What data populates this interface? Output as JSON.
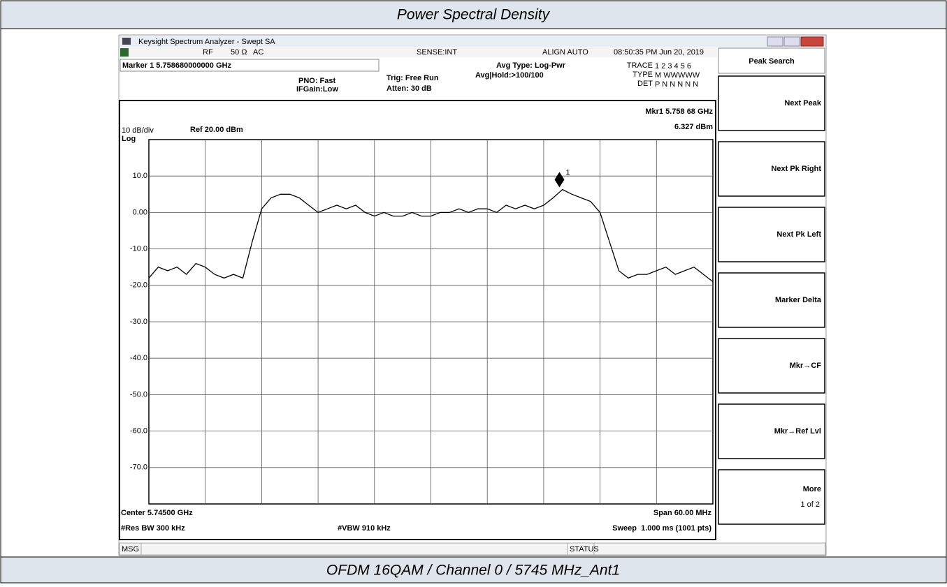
{
  "header": {
    "title": "Power Spectral Density"
  },
  "footer": {
    "caption": "OFDM 16QAM / Channel 0 / 5745 MHz_Ant1"
  },
  "window": {
    "title": "Keysight Spectrum Analyzer - Swept SA",
    "rf": "RF",
    "impedance": "50 Ω",
    "coupling": "AC",
    "sense": "SENSE:INT",
    "align": "ALIGN AUTO",
    "datetime": "08:50:35 PM Jun 20, 2019"
  },
  "settings": {
    "marker": "Marker 1 5.758680000000 GHz",
    "pno": "PNO: Fast",
    "ifgain": "IFGain:Low",
    "trig": "Trig: Free Run",
    "atten": "Atten: 30 dB",
    "avg_type": "Avg Type: Log-Pwr",
    "avg_hold": "Avg|Hold:>100/100",
    "trace_label": "TRACE",
    "trace": "1 2 3 4 5 6",
    "type_label": "TYPE",
    "type": "M WWWWW",
    "det_label": "DET",
    "det": "P N N N N N"
  },
  "chart_data": {
    "type": "line",
    "scale": "10 dB/div",
    "scale_mode": "Log",
    "ref": "Ref 20.00 dBm",
    "marker_freq": "Mkr1 5.758 68 GHz",
    "marker_level": "6.327 dBm",
    "marker": {
      "label": "1",
      "x": 5758.68,
      "y": 6.327
    },
    "x": [
      5715,
      5716,
      5717,
      5718,
      5719,
      5720,
      5721,
      5722,
      5723,
      5724,
      5725,
      5726,
      5727,
      5728,
      5729,
      5730,
      5731,
      5732,
      5733,
      5734,
      5735,
      5736,
      5737,
      5738,
      5739,
      5740,
      5741,
      5742,
      5743,
      5744,
      5745,
      5746,
      5747,
      5748,
      5749,
      5750,
      5751,
      5752,
      5753,
      5754,
      5755,
      5756,
      5757,
      5758,
      5759,
      5760,
      5761,
      5762,
      5763,
      5764,
      5765,
      5766,
      5767,
      5768,
      5769,
      5770,
      5771,
      5772,
      5773,
      5774,
      5775
    ],
    "values": [
      -18,
      -15,
      -16,
      -15,
      -17,
      -14,
      -15,
      -17,
      -18,
      -17,
      -18,
      -8,
      1,
      4,
      5,
      5,
      4,
      2,
      0,
      1,
      2,
      1,
      2,
      0,
      -1,
      0,
      -1,
      -1,
      0,
      -1,
      -1,
      0,
      0,
      1,
      0,
      1,
      1,
      0,
      2,
      1,
      2,
      1,
      2,
      4,
      6.3,
      5,
      4,
      3,
      0,
      -8,
      -16,
      -18,
      -17,
      -17,
      -16,
      -15,
      -17,
      -16,
      -15,
      -17,
      -19
    ],
    "color": "#000000",
    "xlim": [
      5715,
      5775
    ],
    "ylim": [
      -80,
      20
    ],
    "yticks": [
      {
        "value": 10,
        "label": "10.0"
      },
      {
        "value": 0,
        "label": "0.00"
      },
      {
        "value": -10,
        "label": "-10.0"
      },
      {
        "value": -20,
        "label": "-20.0"
      },
      {
        "value": -30,
        "label": "-30.0"
      },
      {
        "value": -40,
        "label": "-40.0"
      },
      {
        "value": -50,
        "label": "-50.0"
      },
      {
        "value": -60,
        "label": "-60.0"
      },
      {
        "value": -70,
        "label": "-70.0"
      }
    ],
    "grid": true,
    "center": "Center 5.74500 GHz",
    "span": "Span 60.00 MHz",
    "rbw": "#Res BW 300 kHz",
    "vbw": "#VBW 910 kHz",
    "sweep": "Sweep  1.000 ms (1001 pts)"
  },
  "softkeys": {
    "title": "Peak Search",
    "keys": [
      "Next Peak",
      "Next Pk Right",
      "Next Pk Left",
      "Marker Delta",
      "Mkr→CF",
      "Mkr→Ref Lvl",
      "More"
    ],
    "more_page": "1 of 2"
  },
  "statusbar": {
    "msg": "MSG",
    "status": "STATUS"
  }
}
